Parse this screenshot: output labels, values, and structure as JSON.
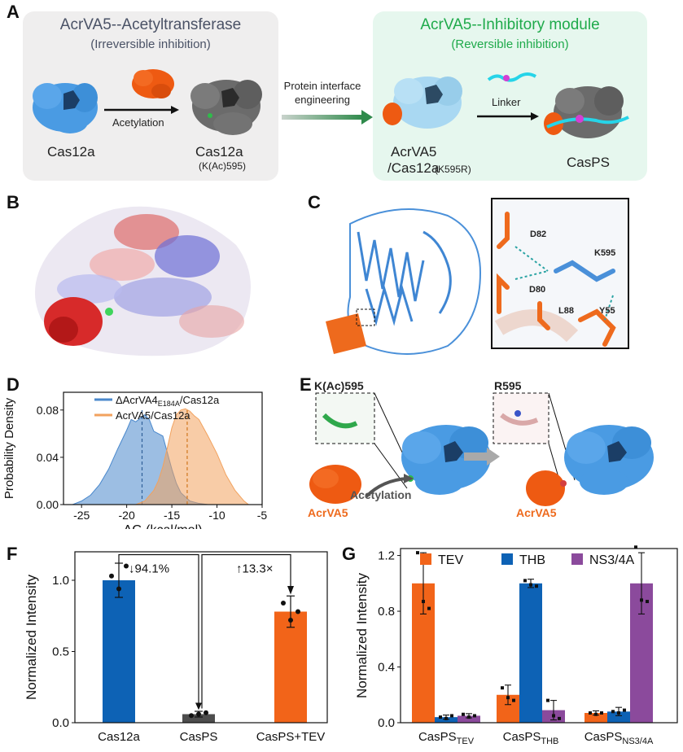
{
  "panels": {
    "a": "A",
    "b": "B",
    "c": "C",
    "d": "D",
    "e": "E",
    "f": "F",
    "g": "G"
  },
  "panel_a": {
    "left_title": "AcrVA5--Acetyltransferase",
    "left_subtitle": "(Irreversible inhibition)",
    "right_title": "AcrVA5--Inhibitory module",
    "right_subtitle": "(Reversible inhibition)",
    "cas12a_label": "Cas12a",
    "acetylation_label": "Acetylation",
    "cas12a_ac_label": "Cas12a",
    "cas12a_ac_sub": "(K(Ac)595)",
    "interface_label_1": "Protein interface",
    "interface_label_2": "engineering",
    "complex_label_1": "AcrVA5",
    "complex_label_2": "/Cas12a",
    "complex_label_sub": "(K595R)",
    "linker_label": "Linker",
    "casps_label": "CasPS",
    "left_bg": "#efeeee",
    "right_bg": "#e6f7ee",
    "right_title_color": "#1faa4b"
  },
  "panel_c": {
    "residues": [
      "D82",
      "K595",
      "D80",
      "L88",
      "Y55"
    ]
  },
  "panel_e": {
    "left_inset_label": "K(Ac)595",
    "right_inset_label": "R595",
    "acetylation_label": "Acetylation",
    "acrva5_left": "AcrVA5",
    "acrva5_right": "AcrVA5",
    "acrva5_color": "#ee6a1d"
  },
  "colors": {
    "cas_blue": "#4a9be3",
    "cas_gray": "#6b6b6b",
    "acr_orange": "#ee5a12",
    "light_blue": "#a9d8f2",
    "bar_blue": "#0d62b5",
    "bar_gray": "#4d4d4d",
    "bar_orange": "#f26419",
    "bar_purple": "#8b4a9c",
    "kde_blue": "#4a88cc",
    "kde_orange": "#f2a25e"
  },
  "chart_data": [
    {
      "id": "D",
      "type": "area",
      "xlabel": "ΔG (kcal/mol)",
      "ylabel": "Probability Density",
      "xlim": [
        -27,
        -5
      ],
      "ylim": [
        0,
        0.095
      ],
      "xticks": [
        -25,
        -20,
        -15,
        -10,
        -5
      ],
      "yticks": [
        0.0,
        0.04,
        0.08
      ],
      "ytick_labels": [
        "0.00",
        "0.04",
        "0.08"
      ],
      "xtick_labels": [
        "-25",
        "-20",
        "-15",
        "-10",
        "-5"
      ],
      "legend": [
        "ΔAcrVA4",
        "E184A",
        "/Cas12a",
        "AcrVA5/Cas12a"
      ],
      "series": [
        {
          "name": "ΔAcrVA4E184A/Cas12a",
          "mean": -18.3,
          "x": [
            -26,
            -25,
            -24,
            -23,
            -22,
            -21,
            -20,
            -19.5,
            -19,
            -18.5,
            -18,
            -17.5,
            -17,
            -16.5,
            -16,
            -15.5,
            -15,
            -14.5,
            -14,
            -13,
            -12,
            -11
          ],
          "y": [
            0.0,
            0.003,
            0.008,
            0.017,
            0.03,
            0.047,
            0.063,
            0.072,
            0.07,
            0.073,
            0.076,
            0.072,
            0.062,
            0.06,
            0.058,
            0.044,
            0.03,
            0.018,
            0.01,
            0.003,
            0.001,
            0.0
          ]
        },
        {
          "name": "AcrVA5/Cas12a",
          "mean": -13.3,
          "x": [
            -19,
            -18,
            -17,
            -16.5,
            -16,
            -15.5,
            -15,
            -14.5,
            -14,
            -13.5,
            -13,
            -12.5,
            -12,
            -11.5,
            -11,
            -10,
            -9,
            -8,
            -7,
            -6.5
          ],
          "y": [
            0.0,
            0.003,
            0.012,
            0.02,
            0.032,
            0.048,
            0.065,
            0.076,
            0.08,
            0.081,
            0.079,
            0.075,
            0.072,
            0.065,
            0.058,
            0.043,
            0.025,
            0.012,
            0.003,
            0.0
          ]
        }
      ]
    },
    {
      "id": "F",
      "type": "bar",
      "ylabel": "Normalized Intensity",
      "ylim": [
        0,
        1.2
      ],
      "yticks": [
        0.0,
        0.5,
        1.0
      ],
      "ytick_labels": [
        "0.0",
        "0.5",
        "1.0"
      ],
      "categories": [
        "Cas12a",
        "CasPS",
        "CasPS+TEV"
      ],
      "values": [
        1.0,
        0.06,
        0.78
      ],
      "errors": [
        0.12,
        0.02,
        0.11
      ],
      "points": [
        [
          1.03,
          0.94,
          1.1
        ],
        [
          0.05,
          0.06,
          0.07
        ],
        [
          0.84,
          0.72,
          0.78
        ]
      ],
      "annotations": [
        "↓94.1%",
        "↑13.3×"
      ]
    },
    {
      "id": "G",
      "type": "bar",
      "ylabel": "Normalized Intensity",
      "ylim": [
        0,
        1.25
      ],
      "yticks": [
        0.0,
        0.4,
        0.8,
        1.2
      ],
      "ytick_labels": [
        "0.0",
        "0.4",
        "0.8",
        "1.2"
      ],
      "categories": [
        "CasPS",
        "CasPS",
        "CasPS"
      ],
      "category_subscripts": [
        "TEV",
        "THB",
        "NS3/4A"
      ],
      "legend": [
        "TEV",
        "THB",
        "NS3/4A"
      ],
      "series": [
        {
          "name": "TEV",
          "values": [
            1.0,
            0.2,
            0.07
          ],
          "errors": [
            0.22,
            0.07,
            0.015
          ],
          "points": [
            [
              1.22,
              0.87,
              0.82
            ],
            [
              0.25,
              0.18,
              0.16
            ],
            [
              0.07,
              0.06,
              0.07
            ]
          ]
        },
        {
          "name": "THB",
          "values": [
            0.04,
            1.0,
            0.08
          ],
          "errors": [
            0.015,
            0.03,
            0.03
          ],
          "points": [
            [
              0.04,
              0.03,
              0.05
            ],
            [
              1.02,
              0.99,
              0.98
            ],
            [
              0.08,
              0.07,
              0.09
            ]
          ]
        },
        {
          "name": "NS3/4A",
          "values": [
            0.05,
            0.09,
            1.0
          ],
          "errors": [
            0.015,
            0.07,
            0.22
          ],
          "points": [
            [
              0.06,
              0.04,
              0.05
            ],
            [
              0.16,
              0.05,
              0.03
            ],
            [
              1.26,
              0.88,
              0.87
            ]
          ]
        }
      ]
    }
  ]
}
